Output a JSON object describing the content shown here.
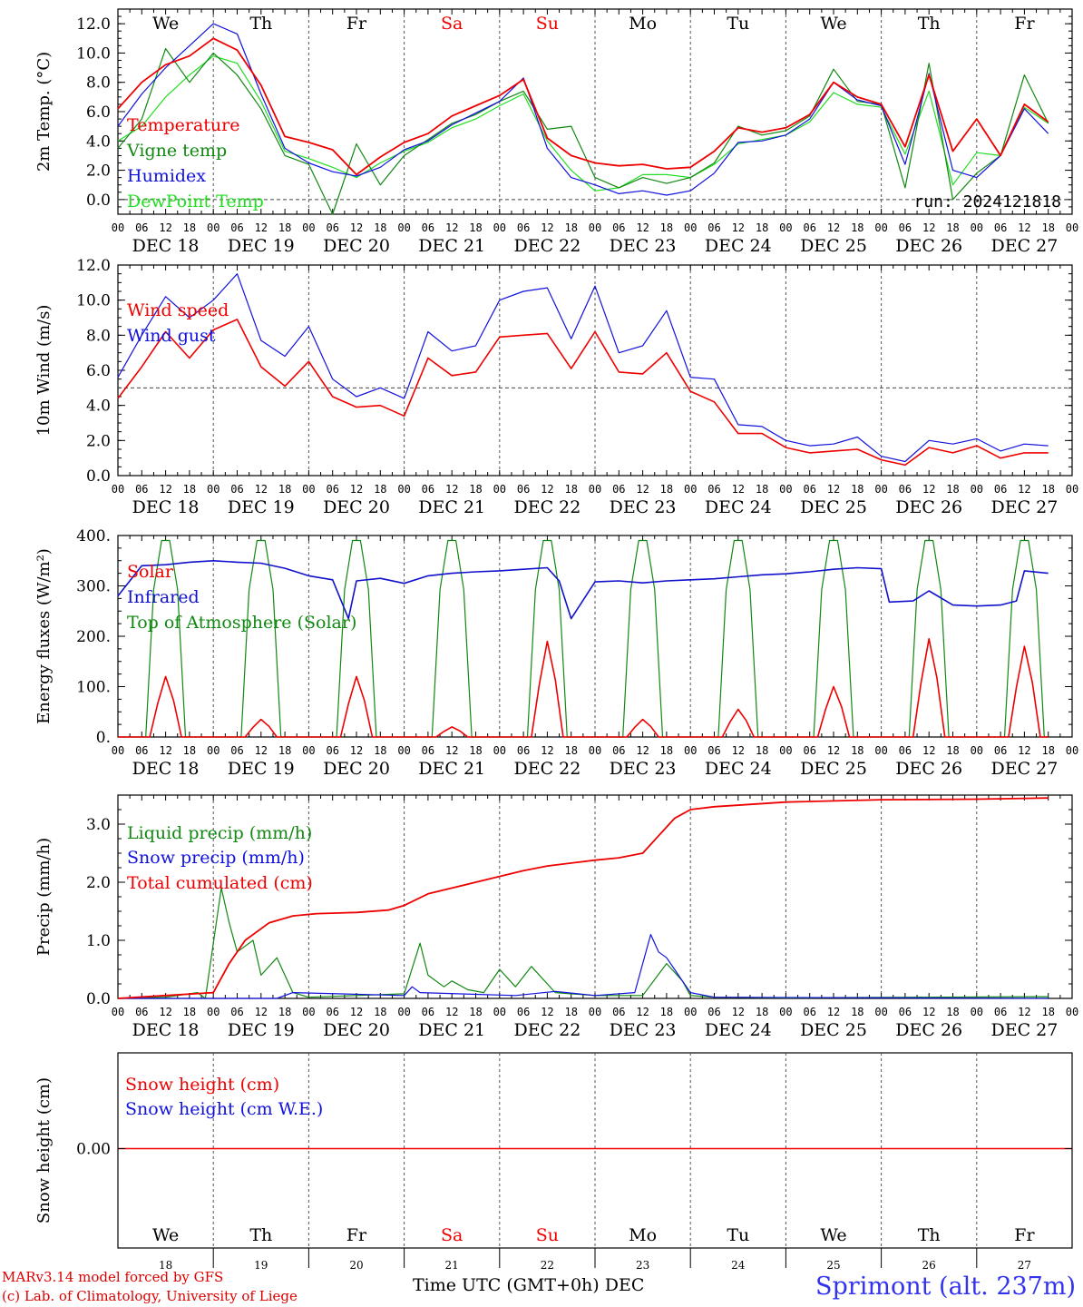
{
  "colors": {
    "temperature": "#ee0000",
    "vigne": "#118811",
    "humidex": "#1111dd",
    "dewpoint": "#22dd22",
    "wind_speed": "#ee0000",
    "wind_gust": "#1111dd",
    "solar": "#ee0000",
    "infrared": "#1111cc",
    "toa": "#118811",
    "liquid": "#118811",
    "snow_precip": "#1111dd",
    "total_cum": "#ee0000",
    "snow_h": "#ee0000",
    "snow_we": "#1111dd",
    "weekend": "#ee0000",
    "site": "#3333ee",
    "credit": "#dd0000"
  },
  "days": [
    "We",
    "Th",
    "Fr",
    "Sa",
    "Su",
    "Mo",
    "Tu",
    "We",
    "Th",
    "Fr"
  ],
  "weekend_index": [
    3,
    4
  ],
  "dates": [
    "DEC 18",
    "DEC 19",
    "DEC 20",
    "DEC 21",
    "DEC 22",
    "DEC 23",
    "DEC 24",
    "DEC 25",
    "DEC 26",
    "DEC 27"
  ],
  "day_numbers": [
    "18",
    "19",
    "20",
    "21",
    "22",
    "23",
    "24",
    "25",
    "26",
    "27"
  ],
  "hour_ticks": [
    "00",
    "06",
    "12",
    "18"
  ],
  "final_tick": "00",
  "run_label": "run: 2024121818",
  "xlabel": "Time UTC (GMT+0h)",
  "xlabel_month": "DEC",
  "credit_line1": "MARv3.14 model forced by GFS",
  "credit_line2": "(c) Lab. of Climatology, University of Liege",
  "site": "Sprimont (alt. 237m)",
  "chart_data": [
    {
      "type": "line",
      "ylabel": "2m Temp. (°C)",
      "ylim": [
        -1,
        13
      ],
      "yticks": [
        "0.0",
        "2.0",
        "4.0",
        "6.0",
        "8.0",
        "10.0",
        "12.0"
      ],
      "reference_line": 0,
      "x_unit": "hours since Dec 18 00 UTC",
      "series": [
        {
          "name": "Temperature",
          "x": [
            0,
            6,
            12,
            18,
            24,
            30,
            36,
            42,
            48,
            54,
            60,
            66,
            72,
            78,
            84,
            90,
            96,
            102,
            108,
            114,
            120,
            126,
            132,
            138,
            144,
            150,
            156,
            162,
            168,
            174,
            180,
            186,
            192,
            198,
            204,
            210,
            216,
            222,
            228,
            234
          ],
          "values": [
            6.2,
            8.0,
            9.2,
            9.8,
            11.0,
            10.2,
            7.8,
            4.3,
            3.9,
            3.4,
            1.7,
            2.9,
            3.9,
            4.5,
            5.7,
            6.4,
            7.1,
            8.2,
            4.2,
            3.0,
            2.5,
            2.3,
            2.4,
            2.1,
            2.2,
            3.3,
            4.9,
            4.6,
            4.9,
            5.8,
            8.0,
            7.0,
            6.5,
            3.6,
            8.5,
            3.3,
            5.5,
            3.0,
            6.5,
            5.3
          ]
        },
        {
          "name": "Vigne temp",
          "x": [
            0,
            6,
            12,
            18,
            24,
            30,
            36,
            42,
            48,
            54,
            60,
            66,
            72,
            78,
            84,
            90,
            96,
            102,
            108,
            114,
            120,
            126,
            132,
            138,
            144,
            150,
            156,
            162,
            168,
            174,
            180,
            186,
            192,
            198,
            204,
            210,
            216,
            222,
            228,
            234
          ],
          "values": [
            3.5,
            5.5,
            10.3,
            8.0,
            10.0,
            8.5,
            6.2,
            3.0,
            2.4,
            -1.0,
            3.8,
            1.0,
            3.0,
            4.1,
            5.2,
            5.8,
            6.7,
            7.4,
            4.8,
            5.0,
            1.5,
            0.8,
            1.5,
            1.1,
            1.5,
            2.5,
            5.0,
            4.4,
            4.7,
            5.7,
            8.9,
            6.7,
            6.5,
            0.8,
            9.3,
            0.0,
            1.8,
            3.0,
            8.5,
            5.2
          ]
        },
        {
          "name": "Humidex",
          "x": [
            0,
            6,
            12,
            18,
            24,
            30,
            36,
            42,
            48,
            54,
            60,
            66,
            72,
            78,
            84,
            90,
            96,
            102,
            108,
            114,
            120,
            126,
            132,
            138,
            144,
            150,
            156,
            162,
            168,
            174,
            180,
            186,
            192,
            198,
            204,
            210,
            216,
            222,
            228,
            234
          ],
          "values": [
            5.0,
            7.2,
            9.0,
            10.5,
            12.0,
            11.3,
            7.2,
            3.5,
            2.5,
            1.9,
            1.6,
            2.2,
            3.4,
            4.0,
            5.1,
            5.9,
            6.7,
            8.3,
            3.5,
            1.5,
            1.0,
            0.4,
            0.6,
            0.3,
            0.6,
            1.8,
            3.9,
            4.0,
            4.4,
            5.5,
            8.0,
            6.8,
            6.4,
            2.4,
            8.6,
            2.0,
            1.5,
            3.0,
            6.2,
            4.5
          ]
        },
        {
          "name": "DewPoint Temp",
          "x": [
            0,
            6,
            12,
            18,
            24,
            30,
            36,
            42,
            48,
            54,
            60,
            66,
            72,
            78,
            84,
            90,
            96,
            102,
            108,
            114,
            120,
            126,
            132,
            138,
            144,
            150,
            156,
            162,
            168,
            174,
            180,
            186,
            192,
            198,
            204,
            210,
            216,
            222,
            228,
            234
          ],
          "values": [
            4.0,
            5.0,
            7.0,
            8.5,
            9.8,
            9.3,
            6.7,
            3.3,
            2.8,
            2.2,
            1.5,
            2.5,
            3.3,
            3.9,
            4.9,
            5.5,
            6.4,
            7.2,
            4.0,
            2.0,
            0.6,
            0.8,
            1.7,
            1.7,
            1.5,
            2.4,
            3.8,
            4.1,
            4.4,
            5.3,
            7.3,
            6.5,
            6.3,
            3.1,
            7.4,
            1.0,
            3.2,
            3.0,
            6.3,
            5.2
          ]
        }
      ]
    },
    {
      "type": "line",
      "ylabel": "10m Wind (m/s)",
      "ylim": [
        0,
        12
      ],
      "yticks": [
        "0.0",
        "2.0",
        "4.0",
        "6.0",
        "8.0",
        "10.0",
        "12.0"
      ],
      "reference_line": 5,
      "x_unit": "hours since Dec 18 00 UTC",
      "series": [
        {
          "name": "Wind speed",
          "x": [
            0,
            6,
            12,
            18,
            24,
            30,
            36,
            42,
            48,
            54,
            60,
            66,
            72,
            78,
            84,
            90,
            96,
            102,
            108,
            114,
            120,
            126,
            132,
            138,
            144,
            150,
            156,
            162,
            168,
            174,
            180,
            186,
            192,
            198,
            204,
            210,
            216,
            222,
            228,
            234
          ],
          "values": [
            4.4,
            6.2,
            8.2,
            6.7,
            8.3,
            8.9,
            6.2,
            5.1,
            6.5,
            4.5,
            3.9,
            4.0,
            3.4,
            6.7,
            5.7,
            5.9,
            7.9,
            8.0,
            8.1,
            6.1,
            8.2,
            5.9,
            5.8,
            7.0,
            4.8,
            4.2,
            2.4,
            2.4,
            1.6,
            1.3,
            1.4,
            1.5,
            0.9,
            0.6,
            1.6,
            1.3,
            1.7,
            1.0,
            1.3,
            1.3
          ]
        },
        {
          "name": "Wind gust",
          "x": [
            0,
            6,
            12,
            18,
            24,
            30,
            36,
            42,
            48,
            54,
            60,
            66,
            72,
            78,
            84,
            90,
            96,
            102,
            108,
            114,
            120,
            126,
            132,
            138,
            144,
            150,
            156,
            162,
            168,
            174,
            180,
            186,
            192,
            198,
            204,
            210,
            216,
            222,
            228,
            234
          ],
          "values": [
            5.6,
            8.0,
            10.2,
            9.0,
            10.0,
            11.5,
            7.7,
            6.8,
            8.5,
            5.5,
            4.5,
            5.0,
            4.4,
            8.2,
            7.1,
            7.4,
            10.0,
            10.5,
            10.7,
            7.8,
            10.8,
            7.0,
            7.4,
            9.4,
            5.6,
            5.5,
            2.9,
            2.8,
            2.0,
            1.7,
            1.8,
            2.2,
            1.1,
            0.8,
            2.0,
            1.8,
            2.1,
            1.4,
            1.8,
            1.7
          ]
        }
      ]
    },
    {
      "type": "line",
      "ylabel": "Energy fluxes (W/m²)",
      "ylim": [
        0,
        400
      ],
      "yticks": [
        "0.",
        "100.",
        "200.",
        "300.",
        "400."
      ],
      "x_unit": "hours since Dec 18 00 UTC",
      "daily_peaks_hour": [
        12,
        36,
        60,
        84,
        108,
        132,
        156,
        180,
        204,
        228
      ],
      "series": [
        {
          "name": "Solar",
          "daily_peak": [
            120,
            35,
            120,
            20,
            190,
            35,
            55,
            100,
            195,
            180
          ]
        },
        {
          "name": "Infrared",
          "x": [
            0,
            6,
            12,
            18,
            24,
            30,
            36,
            42,
            48,
            54,
            58,
            60,
            66,
            72,
            78,
            84,
            90,
            96,
            102,
            108,
            111,
            114,
            120,
            126,
            132,
            138,
            144,
            150,
            156,
            162,
            168,
            174,
            180,
            186,
            192,
            194,
            200,
            204,
            210,
            216,
            222,
            226,
            228,
            234
          ],
          "values": [
            280,
            340,
            342,
            347,
            350,
            347,
            345,
            335,
            320,
            312,
            235,
            310,
            315,
            305,
            320,
            325,
            328,
            330,
            333,
            336,
            310,
            235,
            308,
            310,
            306,
            310,
            312,
            314,
            318,
            322,
            324,
            328,
            333,
            336,
            334,
            268,
            270,
            290,
            262,
            260,
            262,
            270,
            330,
            325
          ]
        },
        {
          "name": "Top of Atmosphere (Solar)",
          "daily_peak": [
            390,
            390,
            390,
            390,
            390,
            390,
            390,
            390,
            390,
            390
          ]
        }
      ]
    },
    {
      "type": "line",
      "ylabel": "Precip (mm/h)",
      "ylim": [
        0,
        3.5
      ],
      "yticks": [
        "0.0",
        "1.0",
        "2.0",
        "3.0"
      ],
      "x_unit": "hours since Dec 18 00 UTC",
      "series": [
        {
          "name": "Liquid precip (mm/h)",
          "x": [
            0,
            12,
            20,
            22,
            26,
            28,
            30,
            34,
            36,
            40,
            44,
            48,
            60,
            72,
            76,
            78,
            82,
            84,
            88,
            92,
            96,
            100,
            104,
            110,
            120,
            132,
            138,
            140,
            142,
            144,
            150,
            168,
            200,
            234
          ],
          "values": [
            0,
            0.02,
            0.1,
            0,
            1.9,
            1.3,
            0.8,
            1.0,
            0.4,
            0.7,
            0.1,
            0.02,
            0.05,
            0.08,
            0.95,
            0.4,
            0.2,
            0.3,
            0.15,
            0.1,
            0.5,
            0.2,
            0.55,
            0.1,
            0.05,
            0.05,
            0.6,
            0.45,
            0.3,
            0.05,
            0.02,
            0.01,
            0.02,
            0.03
          ]
        },
        {
          "name": "Snow precip (mm/h)",
          "x": [
            0,
            40,
            44,
            72,
            74,
            76,
            100,
            110,
            120,
            130,
            134,
            136,
            138,
            140,
            142,
            144,
            150,
            234
          ],
          "values": [
            0,
            0,
            0.1,
            0.05,
            0.2,
            0.1,
            0.05,
            0.12,
            0.05,
            0.1,
            1.1,
            0.8,
            0.7,
            0.5,
            0.3,
            0.1,
            0.02,
            0
          ]
        },
        {
          "name": "Total cumulated (cm)",
          "x": [
            0,
            12,
            24,
            28,
            32,
            38,
            44,
            50,
            60,
            68,
            72,
            78,
            84,
            90,
            96,
            102,
            108,
            114,
            120,
            126,
            132,
            136,
            140,
            144,
            150,
            168,
            192,
            216,
            234
          ],
          "values": [
            0,
            0.05,
            0.1,
            0.6,
            1.0,
            1.3,
            1.42,
            1.46,
            1.48,
            1.52,
            1.6,
            1.8,
            1.9,
            2.0,
            2.1,
            2.2,
            2.28,
            2.33,
            2.38,
            2.42,
            2.5,
            2.8,
            3.1,
            3.25,
            3.3,
            3.38,
            3.42,
            3.43,
            3.45
          ]
        }
      ]
    },
    {
      "type": "line",
      "ylabel": "Snow height (cm)",
      "yticks": [
        "0.00"
      ],
      "series": [
        {
          "name": "Snow height (cm)",
          "x": [
            0,
            234
          ],
          "values": [
            0,
            0
          ]
        },
        {
          "name": "Snow height (cm W.E.)",
          "x": [
            0,
            234
          ],
          "values": [
            0,
            0
          ]
        }
      ]
    }
  ]
}
